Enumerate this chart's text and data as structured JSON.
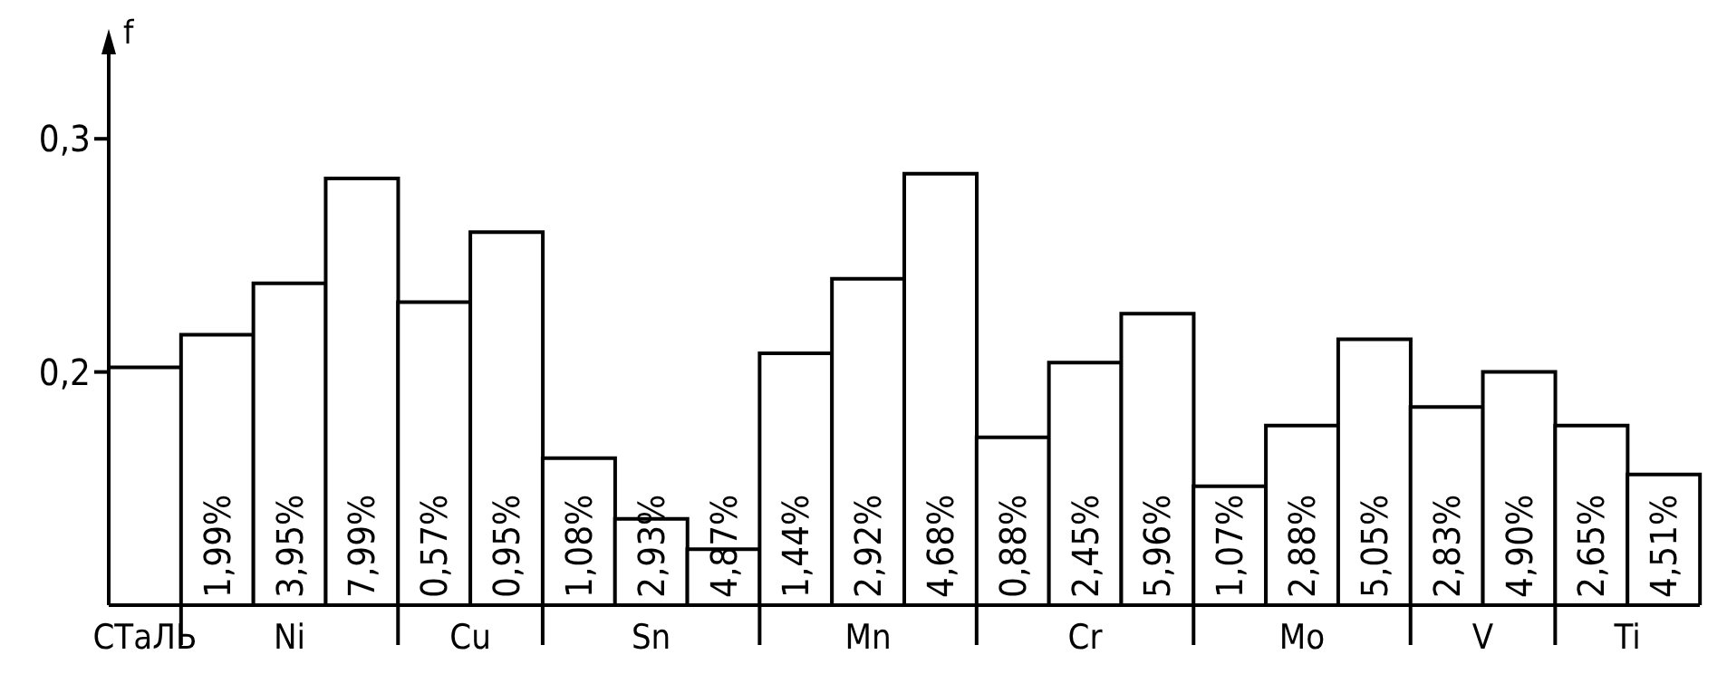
{
  "chart_data": {
    "type": "bar",
    "ylabel": "f",
    "categories": [
      null,
      "1,99%",
      "3,95%",
      "7,99%",
      "0,57%",
      "0,95%",
      "1,08%",
      "2,93%",
      "4,87%",
      "1,44%",
      "2,92%",
      "4,68%",
      "0,88%",
      "2,45%",
      "5,96%",
      "1,07%",
      "2,88%",
      "5,05%",
      "2,83%",
      "4,90%",
      "2,65%",
      "4,51%"
    ],
    "series": [
      {
        "name": "СТаЛЬ",
        "color": "#ffffff",
        "values": [
          0.202,
          null,
          null,
          null,
          null,
          null,
          null,
          null,
          null,
          null,
          null,
          null,
          null,
          null,
          null,
          null,
          null,
          null,
          null,
          null,
          null,
          null
        ]
      },
      {
        "name": "Ni",
        "color": "#ffffff",
        "values": [
          null,
          0.216,
          0.238,
          0.283,
          null,
          null,
          null,
          null,
          null,
          null,
          null,
          null,
          null,
          null,
          null,
          null,
          null,
          null,
          null,
          null,
          null,
          null
        ]
      },
      {
        "name": "Cu",
        "color": "#ffffff",
        "values": [
          null,
          null,
          null,
          null,
          0.23,
          0.26,
          null,
          null,
          null,
          null,
          null,
          null,
          null,
          null,
          null,
          null,
          null,
          null,
          null,
          null,
          null,
          null
        ]
      },
      {
        "name": "Sn",
        "color": "#ffffff",
        "values": [
          null,
          null,
          null,
          null,
          null,
          null,
          0.163,
          0.137,
          0.124,
          null,
          null,
          null,
          null,
          null,
          null,
          null,
          null,
          null,
          null,
          null,
          null,
          null
        ]
      },
      {
        "name": "Mn",
        "color": "#ffffff",
        "values": [
          null,
          null,
          null,
          null,
          null,
          null,
          null,
          null,
          null,
          0.208,
          0.24,
          0.285,
          null,
          null,
          null,
          null,
          null,
          null,
          null,
          null,
          null,
          null
        ]
      },
      {
        "name": "Cr",
        "color": "#ffffff",
        "values": [
          null,
          null,
          null,
          null,
          null,
          null,
          null,
          null,
          null,
          null,
          null,
          null,
          0.172,
          0.204,
          0.225,
          null,
          null,
          null,
          null,
          null,
          null,
          null
        ]
      },
      {
        "name": "Mo",
        "color": "#ffffff",
        "values": [
          null,
          null,
          null,
          null,
          null,
          null,
          null,
          null,
          null,
          null,
          null,
          null,
          null,
          null,
          null,
          0.151,
          0.177,
          0.214,
          null,
          null,
          null,
          null
        ]
      },
      {
        "name": "V",
        "color": "#ffffff",
        "values": [
          null,
          null,
          null,
          null,
          null,
          null,
          null,
          null,
          null,
          null,
          null,
          null,
          null,
          null,
          null,
          null,
          null,
          null,
          0.185,
          0.2,
          null,
          null
        ]
      },
      {
        "name": "Ti",
        "color": "#ffffff",
        "values": [
          null,
          null,
          null,
          null,
          null,
          null,
          null,
          null,
          null,
          null,
          null,
          null,
          null,
          null,
          null,
          null,
          null,
          null,
          null,
          null,
          0.177,
          0.156
        ]
      }
    ],
    "ylim": [
      0.1,
      0.33
    ],
    "yticks": [
      {
        "value": 0.2,
        "label": "0,2"
      },
      {
        "value": 0.3,
        "label": "0,3"
      }
    ],
    "grid": false,
    "legend": "bottom"
  }
}
